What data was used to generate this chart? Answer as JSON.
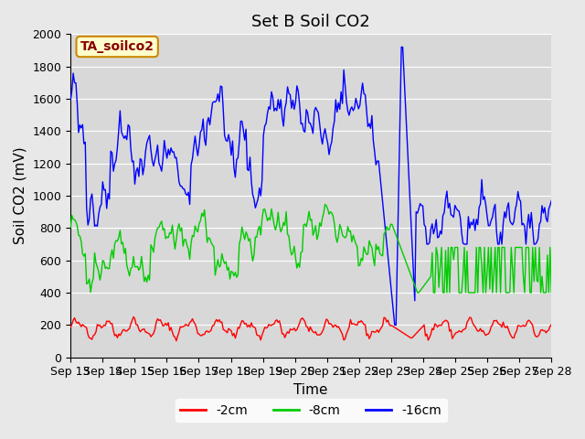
{
  "title": "Set B Soil CO2",
  "xlabel": "Time",
  "ylabel": "Soil CO2 (mV)",
  "ylim": [
    0,
    2000
  ],
  "xlim": [
    0,
    360
  ],
  "background_color": "#e8e8e8",
  "plot_bg_color": "#d8d8d8",
  "grid_color": "#ffffff",
  "annotation_label": "TA_soilco2",
  "annotation_bg": "#ffffcc",
  "annotation_border": "#cc8800",
  "line_2cm_color": "#ff0000",
  "line_8cm_color": "#00cc00",
  "line_16cm_color": "#0000ff",
  "legend_labels": [
    "-2cm",
    "-8cm",
    "-16cm"
  ],
  "x_tick_labels": [
    "Sep 13",
    "Sep 14",
    "Sep 15",
    "Sep 16",
    "Sep 17",
    "Sep 18",
    "Sep 19",
    "Sep 20",
    "Sep 21",
    "Sep 22",
    "Sep 23",
    "Sep 24",
    "Sep 25",
    "Sep 26",
    "Sep 27",
    "Sep 28"
  ],
  "x_tick_positions": [
    0,
    24,
    48,
    72,
    96,
    120,
    144,
    168,
    192,
    216,
    240,
    264,
    288,
    312,
    336,
    360
  ],
  "fontsize_title": 13,
  "fontsize_axis": 11,
  "fontsize_tick": 9,
  "fontsize_legend": 10
}
